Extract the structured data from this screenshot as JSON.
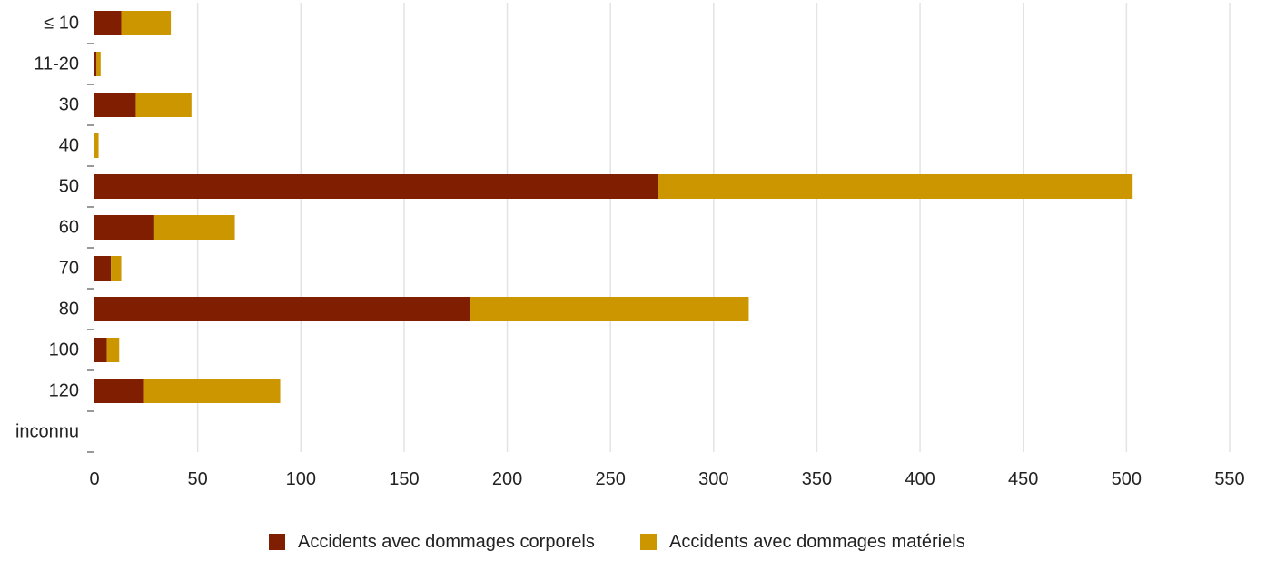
{
  "chart_data": {
    "type": "bar",
    "orientation": "horizontal",
    "stacked": true,
    "title": "",
    "xlabel": "",
    "ylabel": "",
    "categories": [
      "≤ 10",
      "11-20",
      "30",
      "40",
      "50",
      "60",
      "70",
      "80",
      "100",
      "120",
      "inconnu"
    ],
    "series": [
      {
        "name": "Accidents avec dommages corporels",
        "color": "#7f1e00",
        "values": [
          13,
          1,
          20,
          0,
          273,
          29,
          8,
          182,
          6,
          24,
          0
        ]
      },
      {
        "name": "Accidents avec dommages matériels",
        "color": "#cc9600",
        "values": [
          24,
          2,
          27,
          2,
          230,
          39,
          5,
          135,
          6,
          66,
          0
        ]
      }
    ],
    "xlim": [
      0,
      550
    ],
    "xticks": [
      0,
      50,
      100,
      150,
      200,
      250,
      300,
      350,
      400,
      450,
      500,
      550
    ],
    "grid": "vertical",
    "legend_position": "bottom-center"
  }
}
